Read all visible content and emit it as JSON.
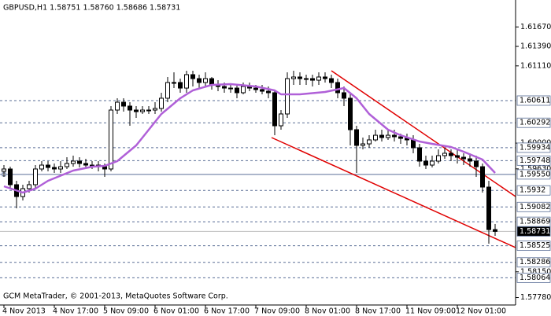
{
  "chart_data": {
    "type": "candlestick",
    "title": "GBPUSD,H1  1.58751 1.58760 1.58686 1.58731",
    "footer": "GCM MetaTrader, © 2001-2013, MetaQuotes Software Corp.",
    "xlim": [
      -0.625,
      81.25
    ],
    "ylim": [
      1.57673,
      1.62057
    ],
    "xticks": [
      {
        "value": 0,
        "label": "4 Nov 2013"
      },
      {
        "value": 8,
        "label": "4 Nov 17:00"
      },
      {
        "value": 16,
        "label": "5 Nov 09:00"
      },
      {
        "value": 24,
        "label": "6 Nov 01:00"
      },
      {
        "value": 32,
        "label": "6 Nov 17:00"
      },
      {
        "value": 40,
        "label": "7 Nov 09:00"
      },
      {
        "value": 48,
        "label": "8 Nov 01:00"
      },
      {
        "value": 56,
        "label": "8 Nov 17:00"
      },
      {
        "value": 64,
        "label": "11 Nov 09:00"
      },
      {
        "value": 72,
        "label": "12 Nov 01:00"
      }
    ],
    "yticks": [
      {
        "value": 1.6167,
        "label": "1.61670"
      },
      {
        "value": 1.6139,
        "label": "1.61390"
      },
      {
        "value": 1.6111,
        "label": "1.61110"
      },
      {
        "value": 1.6,
        "label": "1.60000"
      },
      {
        "value": 1.5963,
        "label": "1.59630"
      },
      {
        "value": 1.5815,
        "label": "1.58150"
      },
      {
        "value": 1.5778,
        "label": "1.57780"
      }
    ],
    "up_color": "#ffffff",
    "down_color": "#000000",
    "open": [
      1.59594,
      1.59628,
      1.59402,
      1.59232,
      1.59345,
      1.59402,
      1.59628,
      1.59684,
      1.5965,
      1.59628,
      1.59661,
      1.59707,
      1.59741,
      1.59707,
      1.59684,
      1.59684,
      1.59661,
      1.59628,
      1.60475,
      1.60588,
      1.60532,
      1.60475,
      1.60452,
      1.60475,
      1.60475,
      1.60498,
      1.60645,
      1.60871,
      1.60871,
      1.60791,
      1.60984,
      1.60927,
      1.60871,
      1.60927,
      1.60837,
      1.60814,
      1.60791,
      1.60791,
      1.60724,
      1.60814,
      1.60791,
      1.60769,
      1.60746,
      1.60724,
      1.60249,
      1.60419,
      1.60927,
      1.6095,
      1.60927,
      1.60927,
      1.60904,
      1.6095,
      1.60927,
      1.60871,
      1.60724,
      1.60645,
      1.60193,
      1.59967,
      1.59989,
      1.60046,
      1.60113,
      1.6008,
      1.60113,
      1.60091,
      1.60068,
      1.60046,
      1.59933,
      1.59741,
      1.59684,
      1.59741,
      1.5982,
      1.59854,
      1.5982,
      1.59797,
      1.59774,
      1.59741,
      1.59661,
      1.59368,
      1.58757
    ],
    "high": [
      1.59684,
      1.59661,
      1.59458,
      1.59402,
      1.59458,
      1.59684,
      1.59741,
      1.59741,
      1.59707,
      1.59741,
      1.59797,
      1.5982,
      1.59797,
      1.59774,
      1.59741,
      1.59741,
      1.59707,
      1.60532,
      1.60645,
      1.60645,
      1.60588,
      1.60532,
      1.60532,
      1.60532,
      1.60588,
      1.60724,
      1.6095,
      1.61017,
      1.60927,
      1.6104,
      1.6104,
      1.60984,
      1.61017,
      1.6095,
      1.60904,
      1.60871,
      1.60837,
      1.60837,
      1.60871,
      1.60871,
      1.60837,
      1.60837,
      1.60814,
      1.60769,
      1.60475,
      1.61017,
      1.6104,
      1.61017,
      1.60984,
      1.60984,
      1.61017,
      1.61017,
      1.60984,
      1.60927,
      1.60814,
      1.60701,
      1.60249,
      1.6008,
      1.60113,
      1.60193,
      1.60193,
      1.60193,
      1.60193,
      1.60136,
      1.60136,
      1.60113,
      1.59989,
      1.5982,
      1.5982,
      1.5991,
      1.59933,
      1.5991,
      1.5991,
      1.59854,
      1.59854,
      1.5982,
      1.59707,
      1.59458,
      1.58837
    ],
    "low": [
      1.59515,
      1.59345,
      1.59063,
      1.59176,
      1.59289,
      1.59345,
      1.59594,
      1.59594,
      1.59571,
      1.59571,
      1.59628,
      1.59661,
      1.5965,
      1.59628,
      1.59628,
      1.59594,
      1.59515,
      1.59594,
      1.60419,
      1.60452,
      1.60249,
      1.60362,
      1.60419,
      1.60419,
      1.60419,
      1.60452,
      1.60588,
      1.60791,
      1.60724,
      1.60724,
      1.60814,
      1.60791,
      1.60814,
      1.60769,
      1.60746,
      1.60724,
      1.60724,
      1.60645,
      1.60701,
      1.60746,
      1.60724,
      1.60701,
      1.60645,
      1.60113,
      1.60193,
      1.60362,
      1.60837,
      1.60837,
      1.60837,
      1.60814,
      1.60837,
      1.60871,
      1.60791,
      1.60645,
      1.60532,
      1.59967,
      1.59571,
      1.5991,
      1.59933,
      1.60023,
      1.60023,
      1.60046,
      1.60023,
      1.59989,
      1.59967,
      1.59854,
      1.59661,
      1.59628,
      1.5965,
      1.59707,
      1.59774,
      1.59741,
      1.59707,
      1.59684,
      1.59661,
      1.59515,
      1.59289,
      1.58554,
      1.58667
    ],
    "close": [
      1.59628,
      1.59402,
      1.59232,
      1.59345,
      1.59402,
      1.59628,
      1.59684,
      1.5965,
      1.59628,
      1.59661,
      1.59707,
      1.59741,
      1.59707,
      1.59684,
      1.59684,
      1.59661,
      1.59628,
      1.60475,
      1.60588,
      1.60532,
      1.60475,
      1.60452,
      1.60475,
      1.60475,
      1.60498,
      1.60645,
      1.60871,
      1.60871,
      1.60791,
      1.60984,
      1.60927,
      1.60871,
      1.60927,
      1.60837,
      1.60814,
      1.60791,
      1.60791,
      1.60724,
      1.60814,
      1.60791,
      1.60769,
      1.60746,
      1.60724,
      1.60249,
      1.60419,
      1.60927,
      1.6095,
      1.60927,
      1.60927,
      1.60904,
      1.6095,
      1.60927,
      1.60871,
      1.60724,
      1.60645,
      1.60193,
      1.59967,
      1.59989,
      1.60046,
      1.60113,
      1.6008,
      1.60113,
      1.60091,
      1.60068,
      1.60046,
      1.59933,
      1.59741,
      1.59684,
      1.59741,
      1.5982,
      1.59854,
      1.5982,
      1.59797,
      1.59774,
      1.59741,
      1.59661,
      1.59368,
      1.58757,
      1.58731
    ],
    "moving_average": {
      "color": "#b060d8",
      "x": [
        0,
        3,
        5,
        7,
        11,
        14,
        16,
        18,
        21,
        23,
        25,
        28,
        30,
        33,
        36,
        40,
        43,
        44,
        47,
        51,
        54,
        56,
        58,
        61,
        63,
        66,
        68,
        71,
        73,
        76,
        78
      ],
      "values": [
        1.59379,
        1.59289,
        1.59345,
        1.59458,
        1.59605,
        1.59661,
        1.59673,
        1.59741,
        1.59967,
        1.60193,
        1.60419,
        1.60645,
        1.60758,
        1.60837,
        1.60848,
        1.60814,
        1.60758,
        1.60701,
        1.60701,
        1.60735,
        1.60791,
        1.60645,
        1.60419,
        1.60193,
        1.60113,
        1.60023,
        1.59989,
        1.59944,
        1.59876,
        1.59763,
        1.59571
      ]
    },
    "trendlines": [
      {
        "color": "#e00000",
        "x": [
          52,
          81.25
        ],
        "values": [
          1.6104,
          1.59232
        ]
      },
      {
        "color": "#e00000",
        "x": [
          42.5,
          81.25
        ],
        "values": [
          1.6008,
          1.58498
        ]
      }
    ],
    "level_color": "#5a6e96",
    "dashed_levels": [
      1.60611,
      1.60292,
      1.59934,
      1.59748,
      1.5932,
      1.59082,
      1.58869,
      1.58525,
      1.58286,
      1.58064
    ],
    "line_level": {
      "value": 1.5955,
      "label": "1.59550"
    },
    "last_price": 1.58731,
    "last_price_color": "#c0c0c0"
  }
}
